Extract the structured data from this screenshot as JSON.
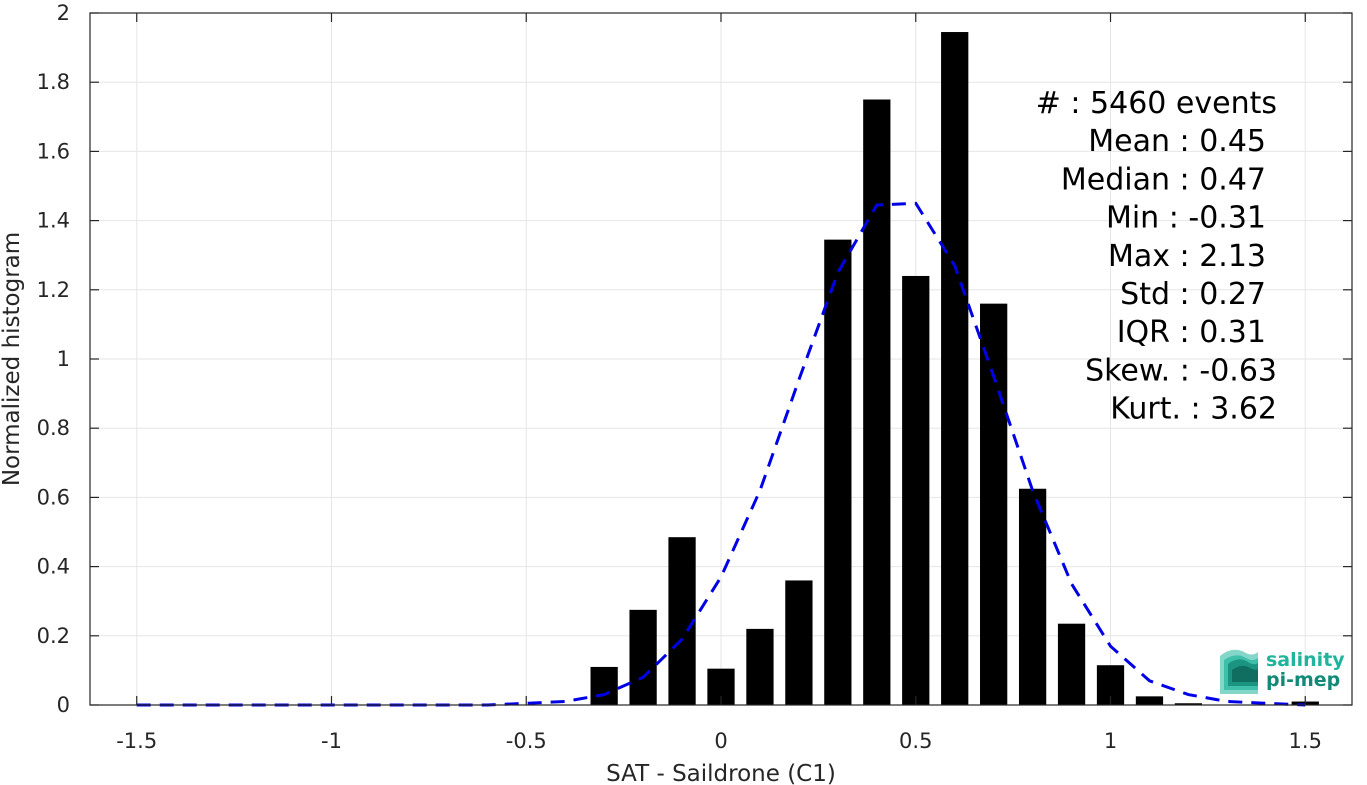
{
  "chart_data": {
    "type": "bar",
    "title": "",
    "xlabel": "SAT - Saildrone (C1)",
    "ylabel": "Normalized histogram",
    "xlim": [
      -1.62,
      1.62
    ],
    "ylim": [
      0,
      2
    ],
    "grid": true,
    "x_ticks": [
      -1.5,
      -1,
      -0.5,
      0,
      0.5,
      1,
      1.5
    ],
    "x_tick_labels": [
      "-1.5",
      "-1",
      "-0.5",
      "0",
      "0.5",
      "1",
      "1.5"
    ],
    "y_ticks": [
      0,
      0.2,
      0.4,
      0.6,
      0.8,
      1,
      1.2,
      1.4,
      1.6,
      1.8,
      2
    ],
    "y_tick_labels": [
      "0",
      "0.2",
      "0.4",
      "0.6",
      "0.8",
      "1",
      "1.2",
      "1.4",
      "1.6",
      "1.8",
      "2"
    ],
    "bar_color": "#000000",
    "bar_width": 0.07,
    "bars": {
      "x": [
        -0.3,
        -0.2,
        -0.1,
        0.0,
        0.1,
        0.2,
        0.3,
        0.4,
        0.5,
        0.6,
        0.7,
        0.8,
        0.9,
        1.0,
        1.1,
        1.2,
        1.5
      ],
      "y": [
        0.11,
        0.275,
        0.485,
        0.105,
        0.22,
        0.36,
        1.345,
        1.75,
        1.24,
        1.945,
        1.16,
        0.625,
        0.235,
        0.115,
        0.025,
        0.005,
        0.01
      ]
    },
    "fit_curve": {
      "name": "",
      "style": "dashed",
      "color": "#0000e6",
      "x": [
        -1.5,
        -1.4,
        -1.3,
        -1.2,
        -1.1,
        -1.0,
        -0.9,
        -0.8,
        -0.7,
        -0.6,
        -0.5,
        -0.4,
        -0.3,
        -0.2,
        -0.1,
        0.0,
        0.1,
        0.2,
        0.3,
        0.4,
        0.5,
        0.6,
        0.7,
        0.8,
        0.9,
        1.0,
        1.1,
        1.2,
        1.3,
        1.4,
        1.5
      ],
      "y": [
        0.0,
        0.0,
        0.0,
        0.0,
        0.0,
        0.0,
        0.0,
        0.0,
        0.0,
        0.0,
        0.005,
        0.01,
        0.03,
        0.08,
        0.19,
        0.37,
        0.62,
        0.94,
        1.25,
        1.445,
        1.45,
        1.27,
        0.95,
        0.62,
        0.35,
        0.17,
        0.07,
        0.03,
        0.01,
        0.005,
        0.0
      ]
    }
  },
  "stats": [
    {
      "label": "#  : 5460 events"
    },
    {
      "label": "Mean : 0.45"
    },
    {
      "label": "Median : 0.47"
    },
    {
      "label": "Min : -0.31"
    },
    {
      "label": "Max : 2.13"
    },
    {
      "label": "Std : 0.27"
    },
    {
      "label": "IQR : 0.31"
    },
    {
      "label": "Skew. : -0.63"
    },
    {
      "label": "Kurt. : 3.62"
    }
  ],
  "logo": {
    "line1": "salinity",
    "line2": "pi-mep",
    "color_dark": "#138a78",
    "color_light": "#1fb59c"
  }
}
